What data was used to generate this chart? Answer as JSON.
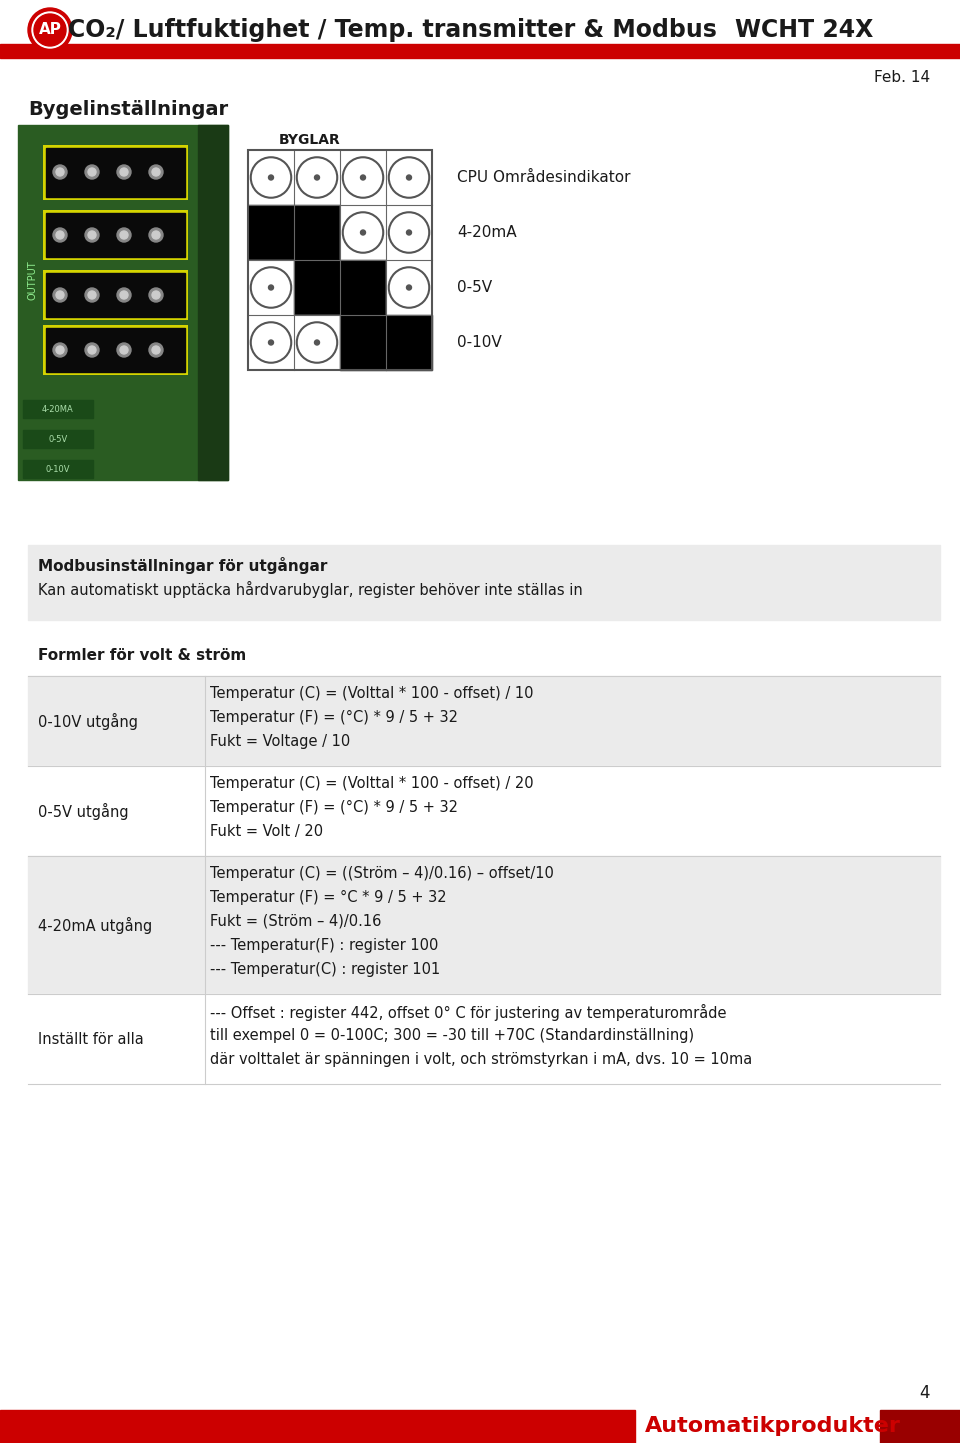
{
  "bg_color": "#ffffff",
  "header_red": "#cc0000",
  "header_text": "CO₂/ Luftfuktighet / Temp. transmitter & Modbus",
  "header_model": "WCHT 24X",
  "header_date": "Feb. 14",
  "section1_title": "Bygelinställningar",
  "byglar_label": "BYGLAR",
  "byglar_items": [
    "CPU Områdesindikator",
    "4-20mA",
    "0-5V",
    "0-10V"
  ],
  "modbus_title": "Modbusinställningar för utgångar",
  "modbus_subtitle": "Kan automatiskt upptäcka hårdvarubyglar, register behöver inte ställas in",
  "formler_title": "Formler för volt & ström",
  "col1_labels": [
    "0-10V utgång",
    "0-5V utgång",
    "4-20mA utgång",
    "Inställt för alla"
  ],
  "col2_rows": [
    [
      "Temperatur (C) = (Volttal * 100 - offset) / 10",
      "Temperatur (F) = (°C) * 9 / 5 + 32",
      "Fukt = Voltage / 10"
    ],
    [
      "Temperatur (C) = (Volttal * 100 - offset) / 20",
      "Temperatur (F) = (°C) * 9 / 5 + 32",
      "Fukt = Volt / 20"
    ],
    [
      "Temperatur (C) = ((Ström – 4)/0.16) – offset/10",
      "Temperatur (F) = °C * 9 / 5 + 32",
      "Fukt = (Ström – 4)/0.16",
      "--- Temperatur(F) : register 100",
      "--- Temperatur(C) : register 101"
    ],
    [
      "--- Offset : register 442, offset 0° C för justering av temperaturområde",
      "till exempel 0 = 0-100C; 300 = -30 till +70C (Standardinställning)",
      "där volttalet är spänningen i volt, och strömstyrkan i mA, dvs. 10 = 10ma"
    ]
  ],
  "row_bg_colors": [
    "#e8e8e8",
    "#ffffff",
    "#e8e8e8",
    "#ffffff"
  ],
  "footer_text": "Automatikprodukter",
  "page_number": "4",
  "text_color": "#1a1a1a",
  "gray_bg": "#ebebeb",
  "row_line_color": "#cccccc",
  "modbus_bg": "#ebebeb"
}
